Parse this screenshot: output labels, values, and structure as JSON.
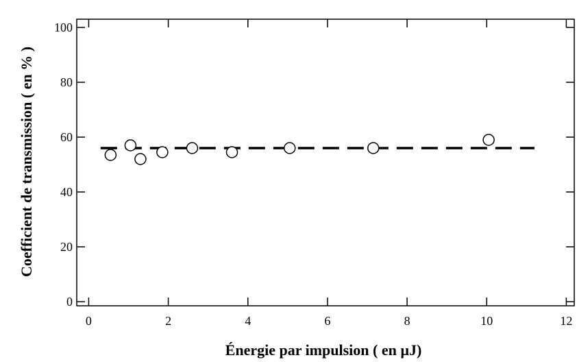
{
  "chart_data": {
    "type": "scatter",
    "title": "",
    "xlabel": "Énergie par impulsion  ( en µJ)",
    "ylabel": "Coefficient de transmission  ( en % )",
    "xlim": [
      -0.3,
      12.2
    ],
    "ylim": [
      -1.5,
      103
    ],
    "xticks": [
      0,
      2,
      4,
      6,
      8,
      10,
      12
    ],
    "yticks": [
      0,
      20,
      40,
      60,
      80,
      100
    ],
    "xtick_labels": [
      "0",
      "2",
      "4",
      "6",
      "8",
      "10",
      "12"
    ],
    "ytick_labels": [
      "0",
      "20",
      "40",
      "60",
      "80",
      "100"
    ],
    "grid": false,
    "legend": "none",
    "points": [
      {
        "x": 0.55,
        "y": 53.5
      },
      {
        "x": 1.05,
        "y": 57.0
      },
      {
        "x": 1.3,
        "y": 52.0
      },
      {
        "x": 1.85,
        "y": 54.5
      },
      {
        "x": 2.6,
        "y": 56.0
      },
      {
        "x": 3.6,
        "y": 54.5
      },
      {
        "x": 5.05,
        "y": 56.0
      },
      {
        "x": 7.15,
        "y": 56.0
      },
      {
        "x": 10.05,
        "y": 59.0
      }
    ],
    "fit_line": {
      "x": [
        0.3,
        11.2
      ],
      "y": [
        56.0,
        56.0
      ],
      "style": "dashed"
    },
    "colors": {
      "axis": "#000000",
      "marker": "#000000",
      "line": "#000000"
    }
  }
}
